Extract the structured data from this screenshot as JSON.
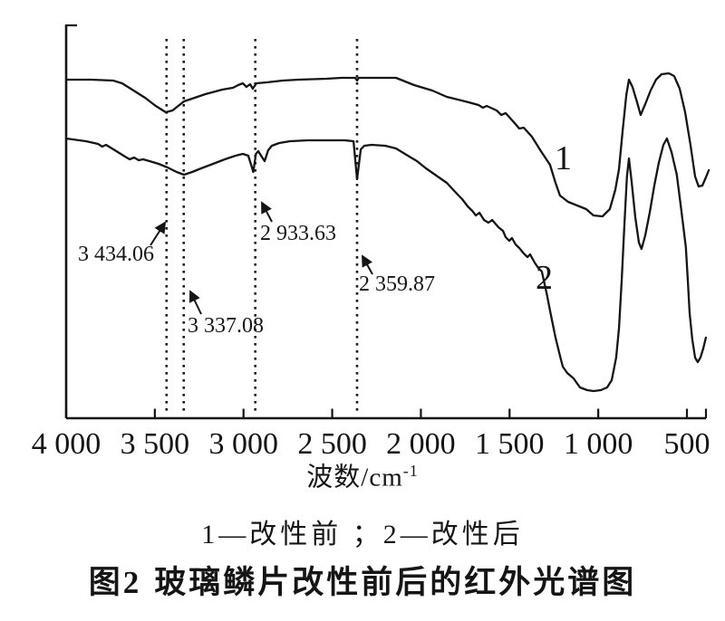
{
  "figure": {
    "caption_prefix": "图2",
    "caption_text": "玻璃鳞片改性前后的红外光谱图"
  },
  "chart_data": {
    "type": "line",
    "title": "图2 玻璃鳞片改性前后的红外光谱图",
    "xlabel": "波数/cm⁻¹",
    "xlabel_base": "波数/cm",
    "xlabel_sup": "-1",
    "ylabel": "",
    "legend": "1—改性前 ；2—改性后",
    "legend_position": "below",
    "grid": false,
    "x_axis": {
      "unit": "cm⁻¹",
      "min": 390,
      "max": 4000,
      "reversed": true
    },
    "y_axis": {
      "ticks": [],
      "note": "arbitrary units, no scale shown"
    },
    "x_ticks": [
      {
        "label": "4 000",
        "value": 4000
      },
      {
        "label": "3 500",
        "value": 3500
      },
      {
        "label": "3 000",
        "value": 3000
      },
      {
        "label": "2 500",
        "value": 2500
      },
      {
        "label": "2 000",
        "value": 2000
      },
      {
        "label": "1 500",
        "value": 1500
      },
      {
        "label": "1 000",
        "value": 1000
      },
      {
        "label": "500",
        "value": 500
      }
    ],
    "peak_annotations": [
      {
        "text": "3 434.06",
        "wavenumber": 3434.06
      },
      {
        "text": "3 337.08",
        "wavenumber": 3337.08
      },
      {
        "text": "2 933.63",
        "wavenumber": 2933.63
      },
      {
        "text": "2 359.87",
        "wavenumber": 2359.87
      }
    ],
    "series": [
      {
        "name": "1",
        "meaning": "改性前",
        "points": [
          [
            4000,
            375
          ],
          [
            3860,
            375
          ],
          [
            3735,
            374
          ],
          [
            3685,
            371
          ],
          [
            3620,
            363
          ],
          [
            3555,
            355
          ],
          [
            3495,
            346
          ],
          [
            3438,
            339
          ],
          [
            3400,
            341
          ],
          [
            3336,
            351
          ],
          [
            3275,
            355
          ],
          [
            3215,
            359
          ],
          [
            3120,
            364
          ],
          [
            3060,
            366
          ],
          [
            3030,
            369
          ],
          [
            3004,
            371
          ],
          [
            2983,
            367
          ],
          [
            2963,
            370
          ],
          [
            2948,
            365
          ],
          [
            2927,
            371
          ],
          [
            2870,
            372
          ],
          [
            2780,
            374
          ],
          [
            2690,
            375
          ],
          [
            2535,
            376
          ],
          [
            2450,
            377
          ],
          [
            2370,
            377
          ],
          [
            2360,
            374
          ],
          [
            2350,
            377
          ],
          [
            2225,
            377
          ],
          [
            2140,
            377
          ],
          [
            2038,
            369
          ],
          [
            1936,
            363
          ],
          [
            1854,
            356
          ],
          [
            1731,
            350
          ],
          [
            1675,
            347
          ],
          [
            1650,
            344
          ],
          [
            1629,
            346
          ],
          [
            1573,
            341
          ],
          [
            1547,
            336
          ],
          [
            1522,
            338
          ],
          [
            1476,
            328
          ],
          [
            1445,
            321
          ],
          [
            1420,
            322
          ],
          [
            1374,
            312
          ],
          [
            1323,
            296
          ],
          [
            1272,
            281
          ],
          [
            1241,
            261
          ],
          [
            1216,
            247
          ],
          [
            1170,
            240
          ],
          [
            1119,
            236
          ],
          [
            1068,
            232
          ],
          [
            1027,
            225
          ],
          [
            976,
            224
          ],
          [
            935,
            232
          ],
          [
            904,
            253
          ],
          [
            883,
            276
          ],
          [
            863,
            318
          ],
          [
            842,
            358
          ],
          [
            827,
            375
          ],
          [
            807,
            367
          ],
          [
            781,
            350
          ],
          [
            761,
            336
          ],
          [
            735,
            348
          ],
          [
            705,
            363
          ],
          [
            674,
            375
          ],
          [
            643,
            381
          ],
          [
            602,
            382
          ],
          [
            572,
            379
          ],
          [
            541,
            365
          ],
          [
            510,
            339
          ],
          [
            480,
            303
          ],
          [
            454,
            268
          ],
          [
            434,
            257
          ],
          [
            413,
            258
          ],
          [
            393,
            267
          ],
          [
            377,
            275
          ]
        ]
      },
      {
        "name": "2",
        "meaning": "改性后",
        "points": [
          [
            4000,
            310
          ],
          [
            3888,
            307
          ],
          [
            3820,
            304
          ],
          [
            3796,
            301
          ],
          [
            3775,
            303
          ],
          [
            3750,
            300
          ],
          [
            3709,
            295
          ],
          [
            3668,
            290
          ],
          [
            3642,
            287
          ],
          [
            3617,
            289
          ],
          [
            3591,
            286
          ],
          [
            3566,
            287
          ],
          [
            3530,
            285
          ],
          [
            3479,
            282
          ],
          [
            3428,
            278
          ],
          [
            3377,
            273
          ],
          [
            3336,
            270
          ],
          [
            3290,
            273
          ],
          [
            3239,
            277
          ],
          [
            3172,
            282
          ],
          [
            3106,
            287
          ],
          [
            3045,
            291
          ],
          [
            3004,
            293
          ],
          [
            2973,
            291
          ],
          [
            2945,
            273
          ],
          [
            2930,
            293
          ],
          [
            2917,
            296
          ],
          [
            2901,
            291
          ],
          [
            2881,
            285
          ],
          [
            2861,
            297
          ],
          [
            2840,
            302
          ],
          [
            2799,
            305
          ],
          [
            2738,
            307
          ],
          [
            2636,
            308
          ],
          [
            2534,
            308
          ],
          [
            2431,
            308
          ],
          [
            2380,
            307
          ],
          [
            2360,
            265
          ],
          [
            2339,
            298
          ],
          [
            2319,
            302
          ],
          [
            2278,
            303
          ],
          [
            2201,
            302
          ],
          [
            2140,
            299
          ],
          [
            2073,
            291
          ],
          [
            2022,
            285
          ],
          [
            1971,
            277
          ],
          [
            1920,
            270
          ],
          [
            1854,
            261
          ],
          [
            1792,
            248
          ],
          [
            1767,
            243
          ],
          [
            1736,
            235
          ],
          [
            1710,
            230
          ],
          [
            1690,
            225
          ],
          [
            1670,
            228
          ],
          [
            1644,
            220
          ],
          [
            1619,
            217
          ],
          [
            1598,
            220
          ],
          [
            1563,
            212
          ],
          [
            1537,
            208
          ],
          [
            1522,
            201
          ],
          [
            1502,
            197
          ],
          [
            1486,
            200
          ],
          [
            1466,
            193
          ],
          [
            1445,
            189
          ],
          [
            1420,
            183
          ],
          [
            1399,
            179
          ],
          [
            1384,
            182
          ],
          [
            1359,
            173
          ],
          [
            1338,
            167
          ],
          [
            1318,
            163
          ],
          [
            1292,
            140
          ],
          [
            1267,
            115
          ],
          [
            1241,
            90
          ],
          [
            1216,
            70
          ],
          [
            1200,
            58
          ],
          [
            1175,
            51
          ],
          [
            1139,
            45
          ],
          [
            1103,
            35
          ],
          [
            1062,
            32
          ],
          [
            1027,
            31
          ],
          [
            986,
            32
          ],
          [
            950,
            35
          ],
          [
            924,
            43
          ],
          [
            899,
            68
          ],
          [
            883,
            100
          ],
          [
            868,
            153
          ],
          [
            853,
            213
          ],
          [
            838,
            268
          ],
          [
            827,
            288
          ],
          [
            812,
            263
          ],
          [
            791,
            223
          ],
          [
            771,
            195
          ],
          [
            756,
            188
          ],
          [
            735,
            203
          ],
          [
            710,
            228
          ],
          [
            684,
            258
          ],
          [
            659,
            283
          ],
          [
            633,
            303
          ],
          [
            613,
            310
          ],
          [
            587,
            295
          ],
          [
            557,
            270
          ],
          [
            531,
            230
          ],
          [
            506,
            190
          ],
          [
            495,
            153
          ],
          [
            485,
            118
          ],
          [
            470,
            88
          ],
          [
            454,
            68
          ],
          [
            439,
            63
          ],
          [
            424,
            68
          ],
          [
            408,
            78
          ],
          [
            393,
            90
          ]
        ]
      }
    ]
  }
}
